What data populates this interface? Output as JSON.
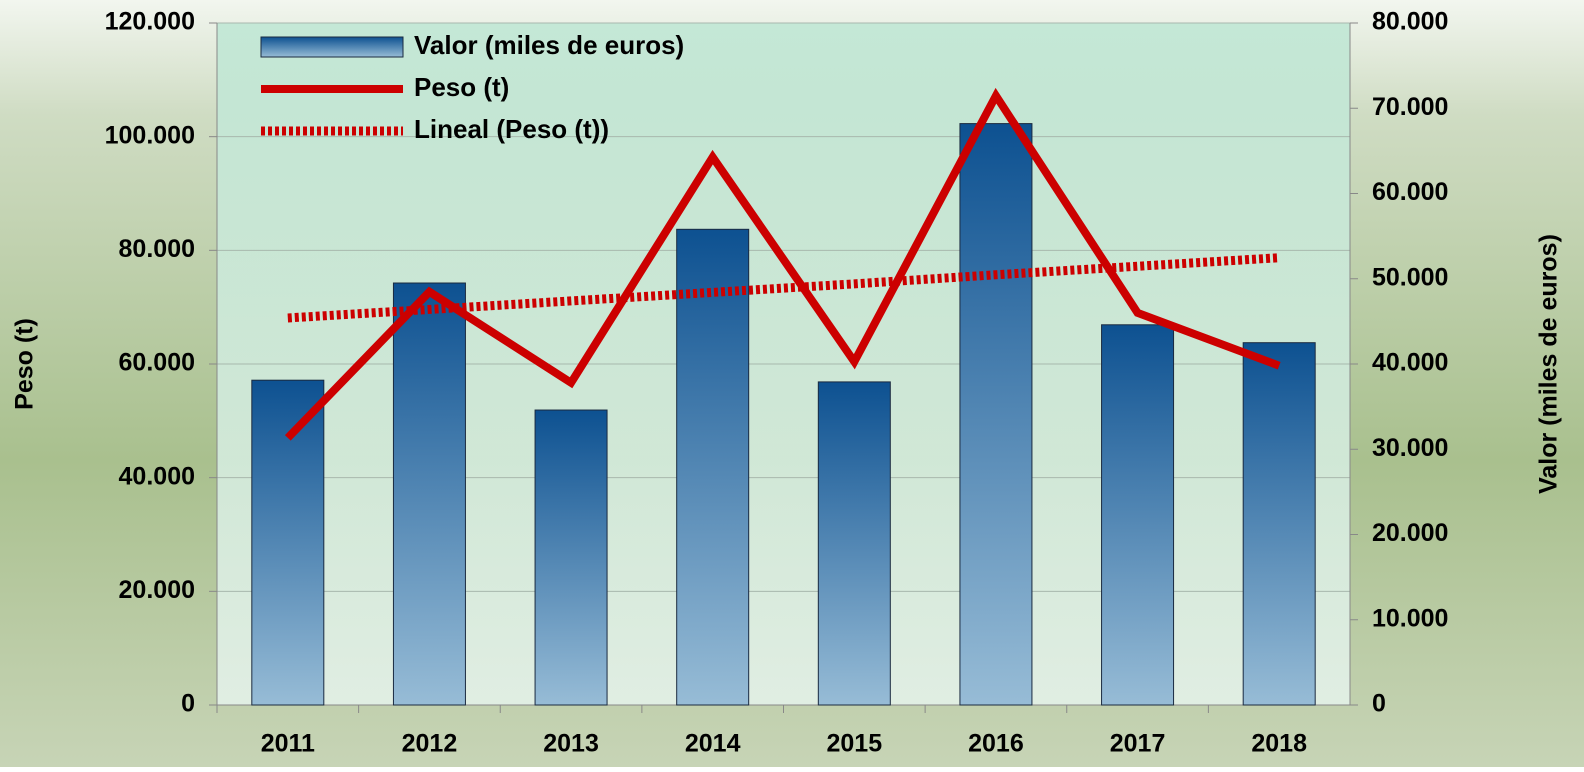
{
  "chart_data": {
    "type": "bar",
    "categories": [
      "2011",
      "2012",
      "2013",
      "2014",
      "2015",
      "2016",
      "2017",
      "2018"
    ],
    "series": [
      {
        "name": "Valor (miles de euros)",
        "type": "bar",
        "axis": "y2",
        "color": "#0d5191",
        "values": [
          38100,
          49500,
          34600,
          55800,
          37900,
          68200,
          44600,
          42500
        ]
      },
      {
        "name": "Peso (t)",
        "type": "line",
        "axis": "y",
        "color": "#cc0000",
        "values": [
          47000,
          72700,
          56700,
          96400,
          60400,
          107200,
          69000,
          59700
        ]
      },
      {
        "name": "Lineal (Peso (t))",
        "type": "line",
        "axis": "y",
        "color": "#cc0000",
        "style": "dotted",
        "values": [
          68100,
          69600,
          71100,
          72600,
          74100,
          75700,
          77200,
          78700
        ]
      }
    ],
    "ylabel": "Peso (t)",
    "y2label": "Valor (miles de euros)",
    "ylim": [
      0,
      120000
    ],
    "yticks": [
      {
        "value": 0,
        "label": "0"
      },
      {
        "value": 20000,
        "label": "20.000"
      },
      {
        "value": 40000,
        "label": "40.000"
      },
      {
        "value": 60000,
        "label": "60.000"
      },
      {
        "value": 80000,
        "label": "80.000"
      },
      {
        "value": 100000,
        "label": "100.000"
      },
      {
        "value": 120000,
        "label": "120.000"
      }
    ],
    "y2lim": [
      0,
      80000
    ],
    "y2ticks": [
      {
        "value": 0,
        "label": "0"
      },
      {
        "value": 10000,
        "label": "10.000"
      },
      {
        "value": 20000,
        "label": "20.000"
      },
      {
        "value": 30000,
        "label": "30.000"
      },
      {
        "value": 40000,
        "label": "40.000"
      },
      {
        "value": 50000,
        "label": "50.000"
      },
      {
        "value": 60000,
        "label": "60.000"
      },
      {
        "value": 70000,
        "label": "70.000"
      },
      {
        "value": 80000,
        "label": "80.000"
      }
    ],
    "grid": true,
    "legend": "top-left"
  }
}
